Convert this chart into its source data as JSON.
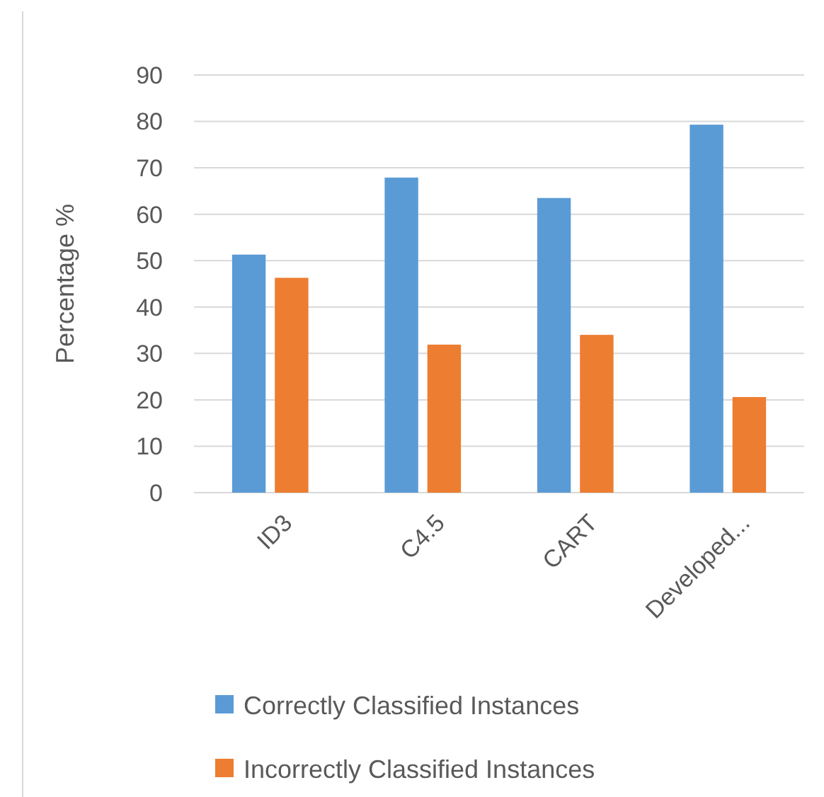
{
  "chart_data": {
    "type": "bar",
    "ylabel": "Percentage %",
    "categories": [
      "ID3",
      "C4.5",
      "CART",
      "Developed..."
    ],
    "series": [
      {
        "name": "Correctly Classified Instances",
        "color": "#5b9bd5",
        "values": [
          51.3,
          67.9,
          63.5,
          79.3
        ]
      },
      {
        "name": "Incorrectly Classified Instances",
        "color": "#ed7d31",
        "values": [
          46.3,
          31.9,
          34.0,
          20.6
        ]
      }
    ],
    "ylim": [
      0,
      90
    ],
    "yticks": [
      0,
      10,
      20,
      30,
      40,
      50,
      60,
      70,
      80,
      90
    ],
    "grid": "y",
    "legend": "bottom"
  }
}
